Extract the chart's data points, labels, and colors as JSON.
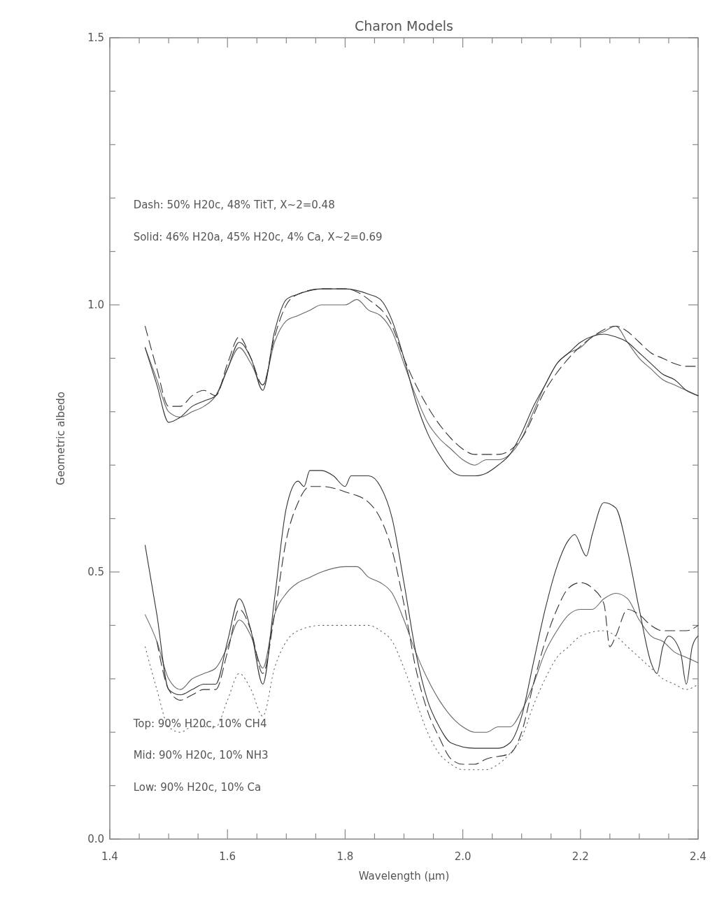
{
  "chart_data": {
    "type": "line",
    "title": "Charon Models",
    "xlabel": "Wavelength (μm)",
    "ylabel": "Geometric albedo",
    "xlim": [
      1.4,
      2.4
    ],
    "ylim": [
      0,
      1.5
    ],
    "xticks": [
      1.4,
      {
        "value": 1.45,
        "label": null
      },
      1.6,
      {
        "value": 1.5,
        "label": null
      },
      {
        "value": 1.55,
        "label": null
      },
      {
        "value": 1.65,
        "label": null
      },
      {
        "value": 1.7,
        "label": null
      },
      {
        "value": 1.75,
        "label": null
      },
      1.8,
      {
        "value": 1.85,
        "label": null
      },
      {
        "value": 1.9,
        "label": null
      },
      {
        "value": 1.95,
        "label": null
      },
      {
        "value": 2.0,
        "label": "2.0"
      },
      {
        "value": 2.05,
        "label": null
      },
      {
        "value": 2.1,
        "label": null
      },
      {
        "value": 2.15,
        "label": null
      },
      2.2,
      {
        "value": 2.25,
        "label": null
      },
      {
        "value": 2.3,
        "label": null
      },
      {
        "value": 2.35,
        "label": null
      },
      2.4
    ],
    "yticks": [
      {
        "value": 0,
        "label": "0.0"
      },
      {
        "value": 0.1,
        "label": null
      },
      {
        "value": 0.2,
        "label": null
      },
      {
        "value": 0.3,
        "label": null
      },
      {
        "value": 0.4,
        "label": null
      },
      0.5,
      {
        "value": 0.6,
        "label": null
      },
      {
        "value": 0.7,
        "label": null
      },
      {
        "value": 0.8,
        "label": null
      },
      {
        "value": 0.9,
        "label": null
      },
      {
        "value": 1.0,
        "label": "1.0"
      },
      {
        "value": 1.1,
        "label": null
      },
      {
        "value": 1.2,
        "label": null
      },
      {
        "value": 1.3,
        "label": null
      },
      {
        "value": 1.4,
        "label": null
      },
      1.5
    ],
    "annotations": [
      "Dash: 50% H20c, 48% TitT, X~2=0.48",
      "Solid: 46% H20a, 45% H20c, 4% Ca, X~2=0.69",
      "Top: 90% H20c, 10% CH4",
      "Mid: 90% H20c, 10% NH3",
      "Low: 90% H20c, 10% Ca"
    ],
    "series": [
      {
        "color": "#666666",
        "line_style": "solid",
        "x": [
          1.46,
          1.48,
          1.5,
          1.52,
          1.54,
          1.56,
          1.58,
          1.6,
          1.62,
          1.64,
          1.66,
          1.68,
          1.7,
          1.72,
          1.74,
          1.76,
          1.78,
          1.8,
          1.82,
          1.84,
          1.86,
          1.88,
          1.9,
          1.92,
          1.94,
          1.96,
          1.98,
          2.0,
          2.02,
          2.04,
          2.06,
          2.08,
          2.1,
          2.12,
          2.14,
          2.16,
          2.18,
          2.2,
          2.22,
          2.24,
          2.26,
          2.28,
          2.3,
          2.32,
          2.34,
          2.36,
          2.38,
          2.4
        ],
        "values": [
          0.92,
          0.86,
          0.8,
          0.79,
          0.8,
          0.81,
          0.83,
          0.88,
          0.92,
          0.89,
          0.85,
          0.93,
          0.97,
          0.98,
          0.99,
          1.0,
          1.0,
          1.0,
          1.01,
          0.99,
          0.98,
          0.95,
          0.89,
          0.83,
          0.78,
          0.75,
          0.73,
          0.71,
          0.7,
          0.71,
          0.71,
          0.72,
          0.75,
          0.8,
          0.85,
          0.89,
          0.91,
          0.92,
          0.94,
          0.95,
          0.96,
          0.93,
          0.9,
          0.88,
          0.86,
          0.85,
          0.84,
          0.83
        ]
      },
      {
        "color": "#333333",
        "line_style": "solid",
        "x": [
          1.46,
          1.48,
          1.5,
          1.52,
          1.54,
          1.56,
          1.58,
          1.6,
          1.62,
          1.64,
          1.66,
          1.68,
          1.7,
          1.72,
          1.76,
          1.8,
          1.84,
          1.86,
          1.88,
          1.9,
          1.92,
          1.94,
          1.96,
          1.98,
          2.0,
          2.02,
          2.04,
          2.06,
          2.08,
          2.1,
          2.12,
          2.14,
          2.16,
          2.18,
          2.2,
          2.24,
          2.26,
          2.28,
          2.3,
          2.32,
          2.34,
          2.36,
          2.38,
          2.4
        ],
        "values": [
          0.92,
          0.85,
          0.78,
          0.79,
          0.81,
          0.82,
          0.83,
          0.88,
          0.93,
          0.9,
          0.84,
          0.95,
          1.01,
          1.02,
          1.03,
          1.03,
          1.02,
          1.01,
          0.97,
          0.9,
          0.82,
          0.76,
          0.72,
          0.69,
          0.68,
          0.68,
          0.685,
          0.7,
          0.72,
          0.76,
          0.81,
          0.85,
          0.89,
          0.91,
          0.93,
          0.945,
          0.94,
          0.93,
          0.91,
          0.89,
          0.87,
          0.86,
          0.84,
          0.83
        ]
      },
      {
        "color": "#333333",
        "line_style": "dashed",
        "x": [
          1.46,
          1.48,
          1.5,
          1.52,
          1.54,
          1.56,
          1.58,
          1.6,
          1.62,
          1.64,
          1.66,
          1.68,
          1.7,
          1.72,
          1.76,
          1.8,
          1.84,
          1.88,
          1.9,
          1.94,
          1.98,
          2.0,
          2.02,
          2.06,
          2.1,
          2.14,
          2.18,
          2.22,
          2.26,
          2.28,
          2.3,
          2.32,
          2.34,
          2.36,
          2.38,
          2.4
        ],
        "values": [
          0.96,
          0.88,
          0.81,
          0.81,
          0.83,
          0.84,
          0.83,
          0.89,
          0.94,
          0.9,
          0.85,
          0.94,
          1.0,
          1.02,
          1.03,
          1.03,
          1.01,
          0.96,
          0.9,
          0.81,
          0.75,
          0.73,
          0.72,
          0.72,
          0.75,
          0.84,
          0.9,
          0.94,
          0.96,
          0.95,
          0.93,
          0.91,
          0.9,
          0.89,
          0.885,
          0.885
        ]
      },
      {
        "color": "#666666",
        "line_style": "solid",
        "x": [
          1.46,
          1.48,
          1.5,
          1.52,
          1.54,
          1.56,
          1.58,
          1.6,
          1.62,
          1.64,
          1.66,
          1.68,
          1.7,
          1.72,
          1.74,
          1.76,
          1.8,
          1.82,
          1.84,
          1.86,
          1.88,
          1.9,
          1.92,
          1.94,
          1.96,
          1.98,
          2.0,
          2.02,
          2.04,
          2.06,
          2.08,
          2.1,
          2.12,
          2.14,
          2.16,
          2.18,
          2.2,
          2.22,
          2.24,
          2.26,
          2.28,
          2.3,
          2.32,
          2.34,
          2.36,
          2.38,
          2.4
        ],
        "values": [
          0.42,
          0.37,
          0.3,
          0.28,
          0.3,
          0.31,
          0.32,
          0.36,
          0.41,
          0.38,
          0.32,
          0.42,
          0.46,
          0.48,
          0.49,
          0.5,
          0.51,
          0.51,
          0.49,
          0.48,
          0.46,
          0.41,
          0.35,
          0.3,
          0.26,
          0.23,
          0.21,
          0.2,
          0.2,
          0.21,
          0.21,
          0.24,
          0.29,
          0.35,
          0.39,
          0.42,
          0.43,
          0.43,
          0.45,
          0.46,
          0.45,
          0.41,
          0.38,
          0.37,
          0.35,
          0.34,
          0.33
        ]
      },
      {
        "color": "#333333",
        "line_style": "solid",
        "x": [
          1.46,
          1.48,
          1.5,
          1.52,
          1.54,
          1.56,
          1.58,
          1.6,
          1.62,
          1.64,
          1.66,
          1.68,
          1.7,
          1.72,
          1.73,
          1.74,
          1.76,
          1.78,
          1.8,
          1.81,
          1.84,
          1.86,
          1.88,
          1.9,
          1.92,
          1.94,
          1.96,
          1.98,
          2.02,
          2.06,
          2.08,
          2.1,
          2.12,
          2.14,
          2.16,
          2.18,
          2.19,
          2.21,
          2.22,
          2.24,
          2.26,
          2.28,
          2.3,
          2.32,
          2.33,
          2.34,
          2.35,
          2.37,
          2.38,
          2.39,
          2.4
        ],
        "values": [
          0.55,
          0.42,
          0.28,
          0.27,
          0.28,
          0.29,
          0.29,
          0.37,
          0.45,
          0.39,
          0.29,
          0.45,
          0.62,
          0.67,
          0.66,
          0.69,
          0.69,
          0.68,
          0.66,
          0.68,
          0.68,
          0.66,
          0.6,
          0.48,
          0.35,
          0.26,
          0.21,
          0.18,
          0.17,
          0.17,
          0.18,
          0.23,
          0.33,
          0.43,
          0.51,
          0.56,
          0.57,
          0.53,
          0.57,
          0.63,
          0.62,
          0.54,
          0.43,
          0.33,
          0.31,
          0.36,
          0.38,
          0.35,
          0.29,
          0.36,
          0.38
        ]
      },
      {
        "color": "#333333",
        "line_style": "dashed",
        "x": [
          1.48,
          1.5,
          1.52,
          1.54,
          1.56,
          1.58,
          1.6,
          1.62,
          1.64,
          1.66,
          1.68,
          1.7,
          1.72,
          1.74,
          1.76,
          1.8,
          1.84,
          1.86,
          1.88,
          1.9,
          1.92,
          1.94,
          1.96,
          1.98,
          2.0,
          2.02,
          2.04,
          2.08,
          2.1,
          2.12,
          2.14,
          2.16,
          2.18,
          2.2,
          2.22,
          2.24,
          2.25,
          2.26,
          2.28,
          2.3,
          2.32,
          2.34,
          2.36,
          2.38,
          2.4
        ],
        "values": [
          0.37,
          0.28,
          0.26,
          0.27,
          0.28,
          0.28,
          0.35,
          0.43,
          0.39,
          0.31,
          0.42,
          0.56,
          0.63,
          0.66,
          0.66,
          0.65,
          0.63,
          0.6,
          0.54,
          0.44,
          0.32,
          0.24,
          0.19,
          0.15,
          0.14,
          0.14,
          0.15,
          0.16,
          0.2,
          0.29,
          0.37,
          0.43,
          0.47,
          0.48,
          0.47,
          0.44,
          0.36,
          0.38,
          0.43,
          0.42,
          0.4,
          0.39,
          0.39,
          0.39,
          0.4
        ]
      },
      {
        "color": "#666666",
        "line_style": "dotted",
        "x": [
          1.46,
          1.48,
          1.5,
          1.52,
          1.54,
          1.56,
          1.58,
          1.6,
          1.62,
          1.64,
          1.66,
          1.68,
          1.7,
          1.72,
          1.76,
          1.8,
          1.84,
          1.86,
          1.88,
          1.9,
          1.92,
          1.94,
          1.96,
          1.98,
          2.0,
          2.04,
          2.06,
          2.08,
          2.1,
          2.12,
          2.14,
          2.16,
          2.18,
          2.2,
          2.24,
          2.26,
          2.28,
          2.3,
          2.32,
          2.34,
          2.36,
          2.38,
          2.4
        ],
        "values": [
          0.36,
          0.28,
          0.21,
          0.2,
          0.21,
          0.21,
          0.21,
          0.26,
          0.31,
          0.28,
          0.23,
          0.32,
          0.37,
          0.39,
          0.4,
          0.4,
          0.4,
          0.39,
          0.37,
          0.32,
          0.26,
          0.2,
          0.16,
          0.14,
          0.13,
          0.13,
          0.14,
          0.16,
          0.19,
          0.25,
          0.3,
          0.34,
          0.36,
          0.38,
          0.39,
          0.38,
          0.36,
          0.34,
          0.32,
          0.3,
          0.29,
          0.28,
          0.29
        ]
      }
    ]
  }
}
